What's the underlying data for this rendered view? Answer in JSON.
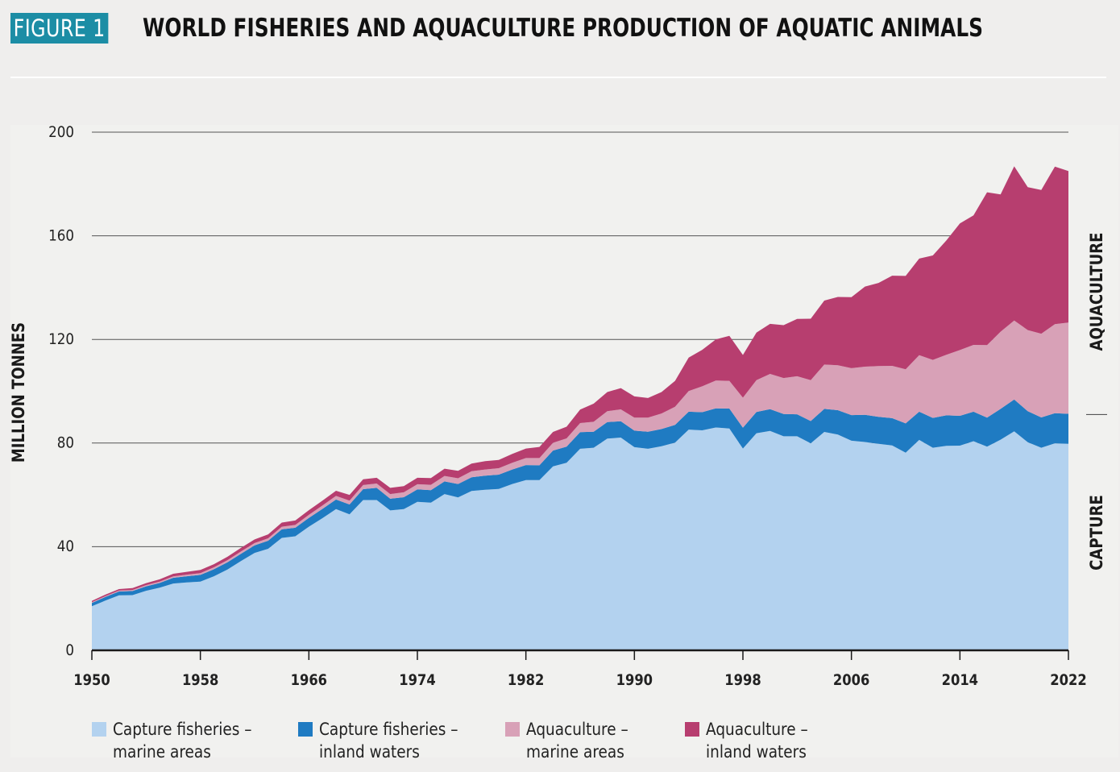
{
  "header": {
    "figure_label": "FIGURE 1",
    "title": "WORLD FISHERIES AND AQUACULTURE PRODUCTION OF AQUATIC ANIMALS"
  },
  "colors": {
    "capture_marine": "#b3d2ef",
    "capture_inland": "#1f7bc2",
    "aquaculture_marine": "#d8a1b7",
    "aquaculture_inland": "#b73e6f",
    "badge": "#1c8da5",
    "gridline": "#555555",
    "axis": "#1a1a1a"
  },
  "legend": [
    {
      "line1": "Capture fisheries –",
      "line2": "marine areas",
      "color_key": "capture_marine"
    },
    {
      "line1": "Capture fisheries –",
      "line2": "inland waters",
      "color_key": "capture_inland"
    },
    {
      "line1": "Aquaculture –",
      "line2": "marine areas",
      "color_key": "aquaculture_marine"
    },
    {
      "line1": "Aquaculture –",
      "line2": "inland waters",
      "color_key": "aquaculture_inland"
    }
  ],
  "chart_data": {
    "type": "area",
    "stacked": true,
    "title": "WORLD FISHERIES AND AQUACULTURE PRODUCTION OF AQUATIC ANIMALS",
    "xlabel": "",
    "ylabel": "MILLION TONNES",
    "xlim": [
      1950,
      2022
    ],
    "ylim": [
      0,
      200
    ],
    "x_ticks": [
      1950,
      1958,
      1966,
      1974,
      1982,
      1990,
      1998,
      2006,
      2014,
      2022
    ],
    "y_ticks": [
      0,
      40,
      80,
      120,
      160,
      200
    ],
    "grid": "horizontal",
    "right_annotations": [
      {
        "text": "AQUACULTURE",
        "y_range": [
          91,
          185
        ]
      },
      {
        "text": "CAPTURE",
        "y_range": [
          0,
          91
        ]
      }
    ],
    "x": [
      1950,
      1951,
      1952,
      1953,
      1954,
      1955,
      1956,
      1957,
      1958,
      1959,
      1960,
      1961,
      1962,
      1963,
      1964,
      1965,
      1966,
      1967,
      1968,
      1969,
      1970,
      1971,
      1972,
      1973,
      1974,
      1975,
      1976,
      1977,
      1978,
      1979,
      1980,
      1981,
      1982,
      1983,
      1984,
      1985,
      1986,
      1987,
      1988,
      1989,
      1990,
      1991,
      1992,
      1993,
      1994,
      1995,
      1996,
      1997,
      1998,
      1999,
      2000,
      2001,
      2002,
      2003,
      2004,
      2005,
      2006,
      2007,
      2008,
      2009,
      2010,
      2011,
      2012,
      2013,
      2014,
      2015,
      2016,
      2017,
      2018,
      2019,
      2020,
      2021,
      2022
    ],
    "series": [
      {
        "name": "Capture fisheries – marine areas",
        "values": [
          17,
          19.2,
          21.2,
          21.3,
          23,
          24.2,
          25.8,
          26.2,
          26.5,
          28.6,
          31.2,
          34.5,
          37.6,
          39.2,
          43.4,
          44,
          47.7,
          51,
          54.5,
          52.5,
          58,
          58,
          54,
          54.5,
          57.3,
          57,
          60.3,
          59,
          61.5,
          62,
          62.3,
          64.2,
          65.7,
          65.7,
          71,
          72.4,
          77.8,
          78.2,
          81.7,
          82.1,
          78.4,
          77.8,
          78.8,
          80.2,
          85.2,
          84.9,
          86,
          85.6,
          77.9,
          83.8,
          84.7,
          82.6,
          82.6,
          79.9,
          84.3,
          83.3,
          80.9,
          80.4,
          79.7,
          79.1,
          76.3,
          81.2,
          78.2,
          78.9,
          79,
          80.7,
          78.6,
          81.3,
          84.5,
          80.3,
          78.2,
          79.9,
          79.7
        ]
      },
      {
        "name": "Capture fisheries – inland waters",
        "values": [
          1.3,
          1.4,
          1.5,
          1.6,
          1.7,
          1.8,
          2.2,
          2.4,
          2.6,
          2.7,
          2.8,
          2.8,
          2.9,
          3.1,
          3.3,
          3.3,
          3.4,
          3.6,
          3.7,
          3.8,
          4.2,
          4.7,
          4.5,
          4.6,
          4.8,
          4.8,
          4.9,
          5.2,
          5.3,
          5.4,
          5.5,
          5.6,
          5.8,
          5.7,
          6.1,
          6.2,
          6.4,
          6.2,
          6.4,
          6.3,
          6.4,
          6.6,
          6.6,
          6.8,
          6.9,
          7,
          7.4,
          7.7,
          8,
          8.2,
          8.4,
          8.6,
          8.5,
          8.6,
          8.9,
          9.4,
          9.9,
          10.5,
          10.4,
          10.5,
          11.3,
          10.9,
          11.5,
          11.8,
          11.5,
          11.4,
          11.2,
          11.9,
          12.3,
          12,
          11.7,
          11.6,
          11.6
        ]
      },
      {
        "name": "Aquaculture – marine areas",
        "values": [
          0.3,
          0.3,
          0.35,
          0.4,
          0.45,
          0.5,
          0.55,
          0.6,
          0.7,
          0.75,
          0.8,
          0.85,
          0.9,
          0.95,
          1,
          1.1,
          1.2,
          1.3,
          1.4,
          1.5,
          1.6,
          1.7,
          1.8,
          1.9,
          2,
          2.1,
          2.1,
          2.2,
          2.3,
          2.4,
          2.5,
          2.6,
          2.7,
          2.8,
          3,
          3.2,
          3.5,
          3.8,
          4.2,
          4.6,
          5,
          5.4,
          6,
          7,
          8,
          10,
          10.7,
          10.7,
          11.6,
          12.3,
          13.6,
          13.9,
          14.7,
          15.8,
          17.1,
          17.3,
          18.1,
          18.6,
          19.6,
          20.2,
          20.9,
          21.8,
          22.4,
          23.4,
          25.4,
          25.8,
          28,
          29.8,
          30.5,
          31.3,
          32.3,
          34.4,
          35.2
        ]
      },
      {
        "name": "Aquaculture – inland waters",
        "values": [
          0.5,
          0.6,
          0.6,
          0.7,
          0.8,
          0.9,
          1,
          1.1,
          1.2,
          1.2,
          1.3,
          1.4,
          1.4,
          1.5,
          1.6,
          1.7,
          1.8,
          1.9,
          2,
          2.2,
          2.2,
          2.2,
          2.4,
          2.4,
          2.5,
          2.6,
          2.8,
          2.9,
          3,
          3.2,
          3.2,
          3.4,
          3.7,
          4.3,
          4.2,
          4.5,
          5.2,
          7,
          7.4,
          8.2,
          8.2,
          7.6,
          8.3,
          10,
          12.9,
          14.1,
          15.9,
          17.4,
          16.5,
          18.3,
          19.3,
          20.4,
          22.1,
          23.7,
          24.7,
          26.4,
          27.4,
          30.9,
          32.1,
          34.8,
          36,
          37.3,
          40.3,
          44.1,
          48.9,
          50,
          59,
          53,
          59.5,
          55.2,
          55.5,
          60.8,
          58.5
        ]
      }
    ]
  }
}
